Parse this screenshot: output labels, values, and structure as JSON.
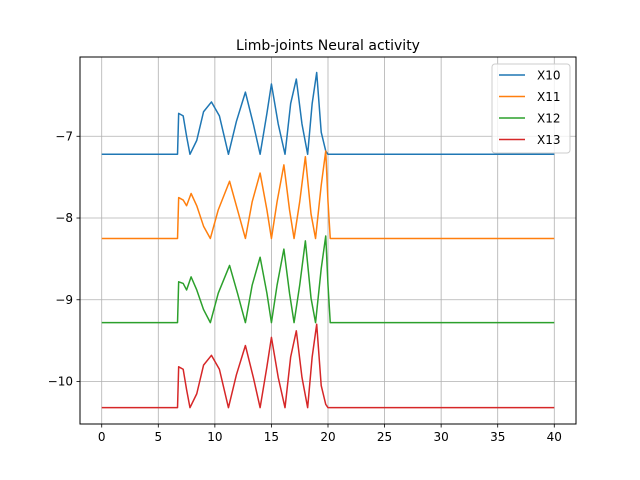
{
  "chart_data": {
    "type": "line",
    "title": "Limb-joints Neural activity",
    "xlabel": "",
    "ylabel": "",
    "xlim": [
      -1.92,
      41.92
    ],
    "ylim": [
      -10.52,
      -6.03
    ],
    "xticks": [
      0,
      5,
      10,
      15,
      20,
      25,
      30,
      35,
      40
    ],
    "yticks": [
      -10,
      -9,
      -8,
      -7
    ],
    "ytick_labels": [
      "−10",
      "−9",
      "−8",
      "−7"
    ],
    "grid": true,
    "legend_position": "top-right",
    "burst": {
      "start": 6.7,
      "end": 19.8,
      "peaks": [
        7.9,
        9.7,
        12.7,
        15.0,
        17.2,
        19.0,
        19.8
      ]
    },
    "series": [
      {
        "name": "X10",
        "color": "#1f77b4",
        "baseline": -7.22,
        "points": [
          [
            0,
            -7.22
          ],
          [
            6.7,
            -7.22
          ],
          [
            6.7,
            -7.22
          ],
          [
            6.8,
            -6.72
          ],
          [
            7.2,
            -6.75
          ],
          [
            7.5,
            -7.0
          ],
          [
            7.8,
            -7.22
          ],
          [
            8.4,
            -7.05
          ],
          [
            9.0,
            -6.7
          ],
          [
            9.7,
            -6.58
          ],
          [
            10.4,
            -6.75
          ],
          [
            11.2,
            -7.22
          ],
          [
            11.9,
            -6.82
          ],
          [
            12.7,
            -6.46
          ],
          [
            13.4,
            -6.85
          ],
          [
            14.0,
            -7.22
          ],
          [
            14.6,
            -6.72
          ],
          [
            15.0,
            -6.36
          ],
          [
            15.6,
            -6.85
          ],
          [
            16.2,
            -7.22
          ],
          [
            16.7,
            -6.6
          ],
          [
            17.2,
            -6.3
          ],
          [
            17.7,
            -6.85
          ],
          [
            18.2,
            -7.22
          ],
          [
            18.6,
            -6.6
          ],
          [
            19.0,
            -6.22
          ],
          [
            19.4,
            -6.95
          ],
          [
            19.8,
            -7.18
          ],
          [
            20.0,
            -7.22
          ],
          [
            40,
            -7.22
          ]
        ]
      },
      {
        "name": "X11",
        "color": "#ff7f0e",
        "baseline": -8.25,
        "points": [
          [
            0,
            -8.25
          ],
          [
            6.7,
            -8.25
          ],
          [
            6.7,
            -8.25
          ],
          [
            6.8,
            -7.75
          ],
          [
            7.2,
            -7.78
          ],
          [
            7.5,
            -7.85
          ],
          [
            7.9,
            -7.7
          ],
          [
            8.4,
            -7.85
          ],
          [
            9.0,
            -8.1
          ],
          [
            9.6,
            -8.25
          ],
          [
            10.3,
            -7.9
          ],
          [
            11.3,
            -7.55
          ],
          [
            12.0,
            -7.9
          ],
          [
            12.7,
            -8.25
          ],
          [
            13.3,
            -7.8
          ],
          [
            14.0,
            -7.45
          ],
          [
            14.6,
            -7.9
          ],
          [
            15.0,
            -8.25
          ],
          [
            15.5,
            -7.8
          ],
          [
            16.1,
            -7.35
          ],
          [
            16.6,
            -7.9
          ],
          [
            17.0,
            -8.25
          ],
          [
            17.5,
            -7.8
          ],
          [
            18.0,
            -7.25
          ],
          [
            18.5,
            -7.95
          ],
          [
            18.9,
            -8.25
          ],
          [
            19.4,
            -7.6
          ],
          [
            19.8,
            -7.18
          ],
          [
            20.0,
            -7.8
          ],
          [
            20.2,
            -8.25
          ],
          [
            40,
            -8.25
          ]
        ]
      },
      {
        "name": "X12",
        "color": "#2ca02c",
        "baseline": -9.28,
        "points": [
          [
            0,
            -9.28
          ],
          [
            6.7,
            -9.28
          ],
          [
            6.7,
            -9.28
          ],
          [
            6.8,
            -8.78
          ],
          [
            7.2,
            -8.8
          ],
          [
            7.5,
            -8.88
          ],
          [
            7.9,
            -8.72
          ],
          [
            8.4,
            -8.88
          ],
          [
            9.0,
            -9.12
          ],
          [
            9.6,
            -9.28
          ],
          [
            10.3,
            -8.92
          ],
          [
            11.3,
            -8.58
          ],
          [
            12.0,
            -8.92
          ],
          [
            12.7,
            -9.28
          ],
          [
            13.3,
            -8.82
          ],
          [
            14.0,
            -8.48
          ],
          [
            14.6,
            -8.92
          ],
          [
            15.0,
            -9.28
          ],
          [
            15.5,
            -8.82
          ],
          [
            16.1,
            -8.38
          ],
          [
            16.6,
            -8.92
          ],
          [
            17.0,
            -9.28
          ],
          [
            17.5,
            -8.82
          ],
          [
            18.0,
            -8.28
          ],
          [
            18.5,
            -8.98
          ],
          [
            18.9,
            -9.28
          ],
          [
            19.4,
            -8.62
          ],
          [
            19.8,
            -8.22
          ],
          [
            20.0,
            -8.82
          ],
          [
            20.2,
            -9.28
          ],
          [
            40,
            -9.28
          ]
        ]
      },
      {
        "name": "X13",
        "color": "#d62728",
        "baseline": -10.32,
        "points": [
          [
            0,
            -10.32
          ],
          [
            6.7,
            -10.32
          ],
          [
            6.7,
            -10.32
          ],
          [
            6.8,
            -9.82
          ],
          [
            7.2,
            -9.85
          ],
          [
            7.5,
            -10.1
          ],
          [
            7.8,
            -10.32
          ],
          [
            8.4,
            -10.15
          ],
          [
            9.0,
            -9.8
          ],
          [
            9.7,
            -9.68
          ],
          [
            10.4,
            -9.85
          ],
          [
            11.2,
            -10.32
          ],
          [
            11.9,
            -9.92
          ],
          [
            12.7,
            -9.56
          ],
          [
            13.4,
            -9.95
          ],
          [
            14.0,
            -10.32
          ],
          [
            14.6,
            -9.82
          ],
          [
            15.0,
            -9.46
          ],
          [
            15.6,
            -9.95
          ],
          [
            16.2,
            -10.32
          ],
          [
            16.7,
            -9.7
          ],
          [
            17.2,
            -9.38
          ],
          [
            17.7,
            -9.95
          ],
          [
            18.2,
            -10.32
          ],
          [
            18.6,
            -9.7
          ],
          [
            19.0,
            -9.3
          ],
          [
            19.4,
            -10.05
          ],
          [
            19.8,
            -10.28
          ],
          [
            20.0,
            -10.32
          ],
          [
            40,
            -10.32
          ]
        ]
      }
    ]
  }
}
